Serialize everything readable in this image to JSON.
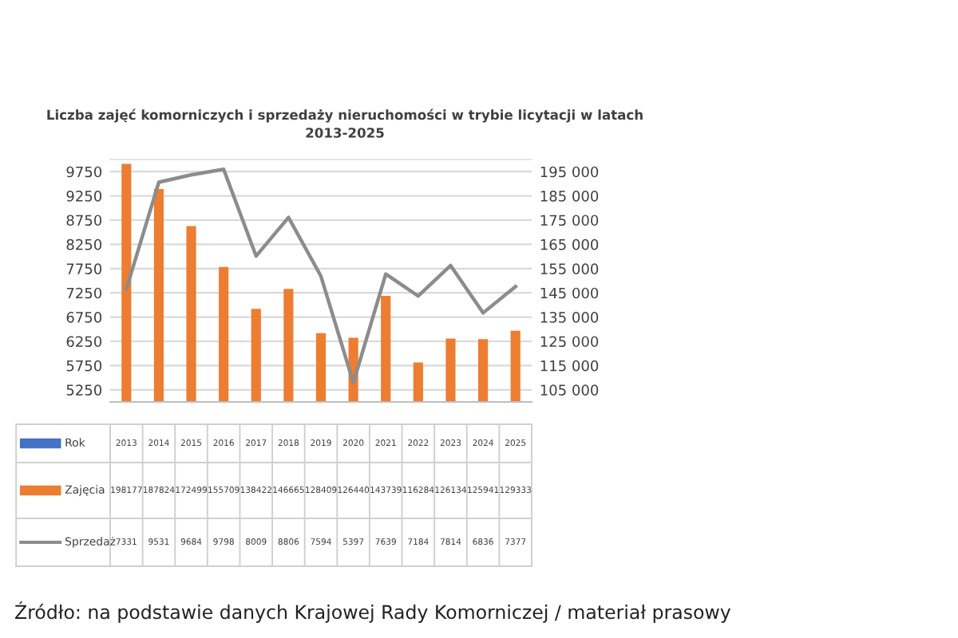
{
  "chart_data": {
    "type": "bar",
    "title": "Liczba zajęć komorniczych i sprzedaży nieruchomości w trybie licytacji w latach\n2013-2025",
    "xlabel": "Rok",
    "categories": [
      "2013",
      "2014",
      "2015",
      "2016",
      "2017",
      "2018",
      "2019",
      "2020",
      "2021",
      "2022",
      "2023",
      "2024",
      "2025"
    ],
    "series": [
      {
        "name": "Zajęcia",
        "axis": "y2",
        "color": "#ed7d31",
        "values": [
          198177,
          187824,
          172499,
          155709,
          138422,
          146665,
          128409,
          126440,
          143739,
          116284,
          126134,
          125941,
          129333
        ]
      },
      {
        "name": "Sprzedaż",
        "type": "line",
        "color": "#8c8c8c",
        "values": [
          7331,
          9531,
          9684,
          9798,
          8009,
          8806,
          7594,
          5397,
          7639,
          7184,
          7814,
          6836,
          7377
        ]
      }
    ],
    "ylim": [
      5000,
      10000
    ],
    "yticks": [
      5250,
      5750,
      6250,
      6750,
      7250,
      7750,
      8250,
      8750,
      9250,
      9750
    ],
    "y2lim": [
      100000,
      200000
    ],
    "y2ticks": [
      {
        "value": 105000,
        "label": "105 000"
      },
      {
        "value": 115000,
        "label": "115 000"
      },
      {
        "value": 125000,
        "label": "125 000"
      },
      {
        "value": 135000,
        "label": "135 000"
      },
      {
        "value": 145000,
        "label": "145 000"
      },
      {
        "value": 155000,
        "label": "155 000"
      },
      {
        "value": 165000,
        "label": "165 000"
      },
      {
        "value": 175000,
        "label": "175 000"
      },
      {
        "value": 185000,
        "label": "185 000"
      },
      {
        "value": 195000,
        "label": "195 000"
      }
    ],
    "grid": "y",
    "data_labels": true,
    "legend": "bottom",
    "annotations": [
      "Źródło: na podstawie danych Krajowej Rady Komorniczej / materiał prasowy"
    ]
  }
}
